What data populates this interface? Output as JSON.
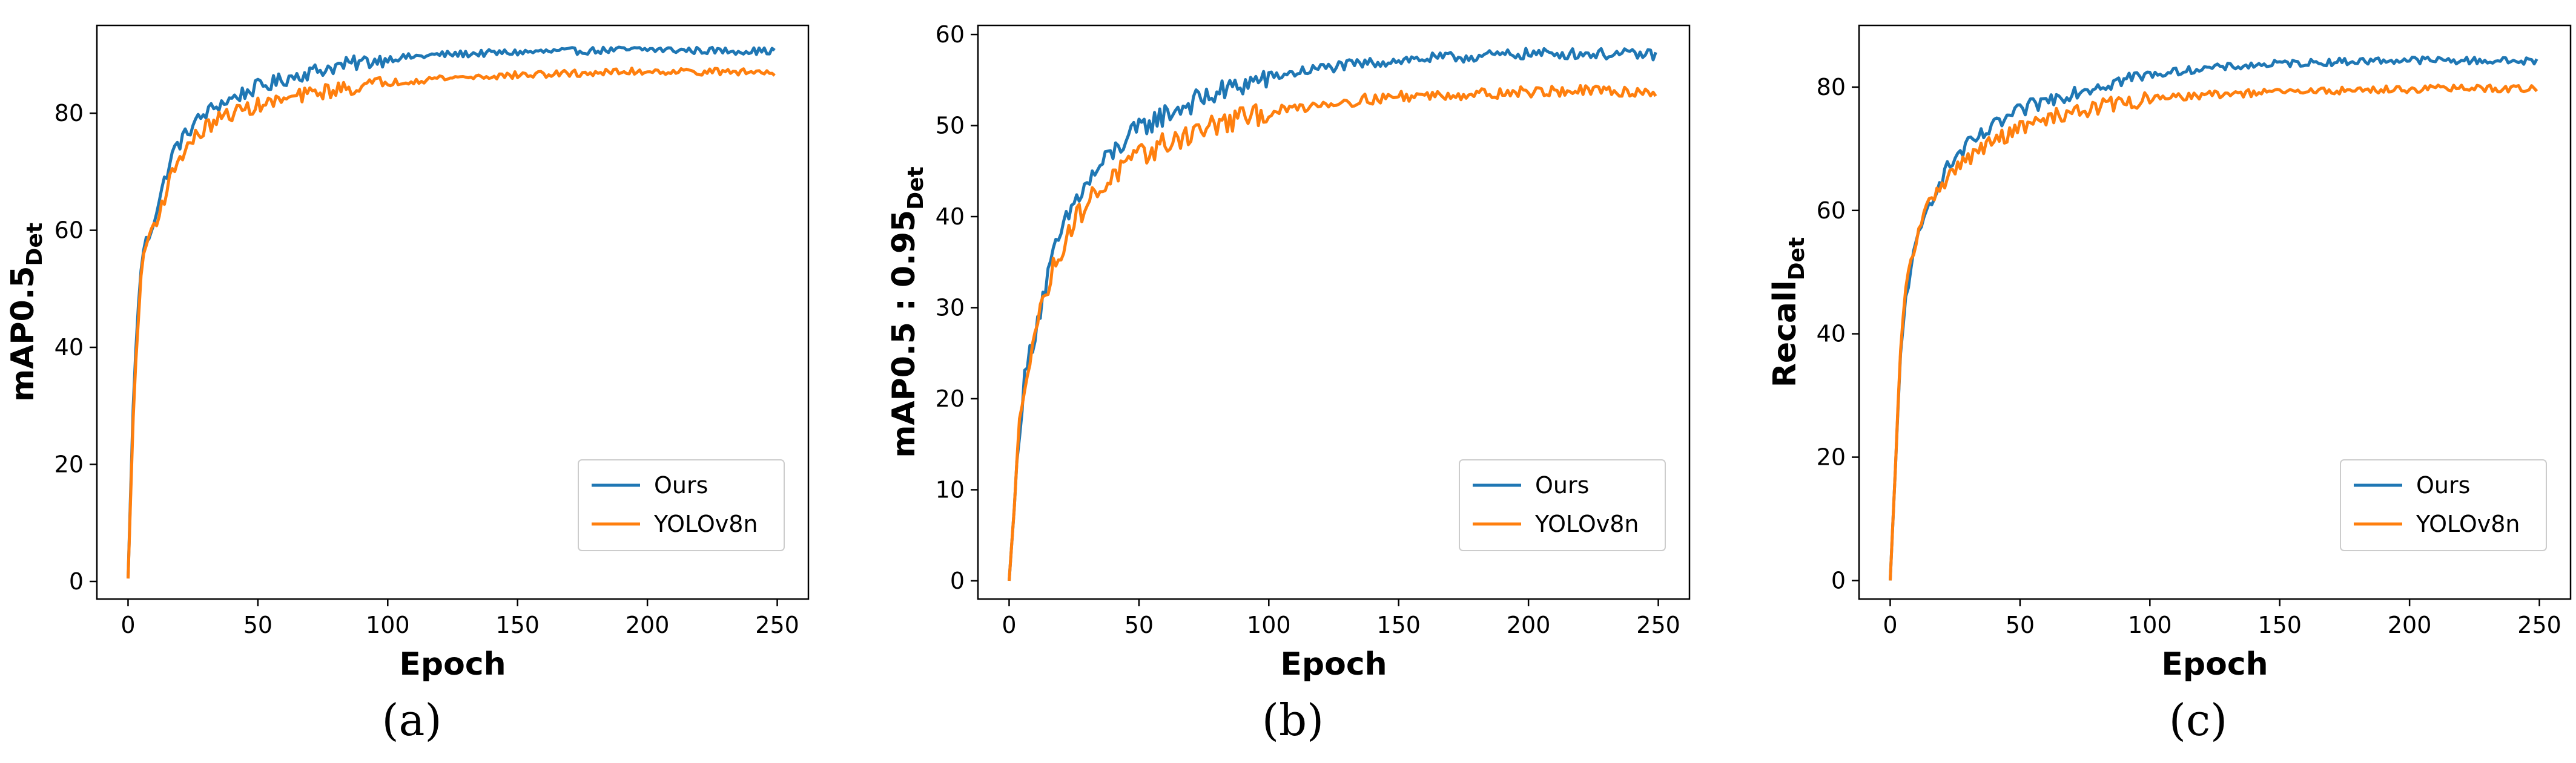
{
  "chart_data": [
    {
      "type": "line",
      "panel_label": "(a)",
      "xlabel": "Epoch",
      "ylabel_main": "mAP0.5",
      "ylabel_sub": "Det",
      "xlim": [
        -12,
        262
      ],
      "ylim": [
        -3,
        95
      ],
      "xticks": [
        0,
        50,
        100,
        150,
        200,
        250
      ],
      "yticks": [
        0,
        20,
        40,
        60,
        80
      ],
      "legend_position": "lower-right",
      "series": [
        {
          "name": "Ours",
          "color": "#1f77b4",
          "x": [
            0,
            2,
            4,
            6,
            8,
            10,
            12,
            15,
            18,
            20,
            25,
            30,
            35,
            40,
            45,
            50,
            55,
            60,
            65,
            70,
            75,
            80,
            90,
            100,
            120,
            150,
            180,
            200,
            220,
            249
          ],
          "y": [
            0.5,
            30,
            48,
            57,
            59,
            62,
            65,
            70,
            74,
            75,
            78,
            80,
            81.5,
            82.5,
            83.5,
            84.5,
            85,
            85.8,
            86.5,
            87,
            87.5,
            88,
            88.7,
            89.3,
            90,
            90.4,
            90.7,
            90.9,
            90.7,
            90.6
          ]
        },
        {
          "name": "YOLOv8n",
          "color": "#ff7f0e",
          "x": [
            0,
            2,
            4,
            6,
            8,
            10,
            12,
            15,
            18,
            20,
            25,
            30,
            35,
            40,
            45,
            50,
            55,
            60,
            65,
            70,
            75,
            80,
            90,
            100,
            120,
            150,
            180,
            200,
            220,
            249
          ],
          "y": [
            0.5,
            28,
            46,
            56,
            59,
            61,
            63,
            67,
            71,
            72.5,
            75.5,
            77.5,
            79,
            80,
            80.7,
            81.3,
            81.8,
            82.3,
            82.8,
            83.3,
            83.7,
            84,
            84.6,
            85.2,
            86,
            86.5,
            86.9,
            87.2,
            87.1,
            87
          ]
        }
      ]
    },
    {
      "type": "line",
      "panel_label": "(b)",
      "xlabel": "Epoch",
      "ylabel_main": "mAP0.5 : 0.95",
      "ylabel_sub": "Det",
      "xlim": [
        -12,
        262
      ],
      "ylim": [
        -2,
        61
      ],
      "xticks": [
        0,
        50,
        100,
        150,
        200,
        250
      ],
      "yticks": [
        0,
        10,
        20,
        30,
        40,
        50,
        60
      ],
      "legend_position": "lower-right",
      "series": [
        {
          "name": "Ours",
          "color": "#1f77b4",
          "x": [
            0,
            2,
            4,
            6,
            8,
            10,
            12,
            15,
            18,
            20,
            25,
            30,
            35,
            40,
            45,
            50,
            55,
            60,
            70,
            80,
            90,
            100,
            120,
            150,
            180,
            200,
            220,
            249
          ],
          "y": [
            0,
            8,
            17,
            22,
            25,
            27.5,
            30,
            33.5,
            36.5,
            38,
            41.5,
            43.5,
            45.5,
            47,
            48.5,
            49.5,
            50.5,
            51.2,
            52.5,
            53.5,
            54.5,
            55.3,
            56.3,
            57.2,
            57.6,
            57.9,
            57.9,
            57.8
          ]
        },
        {
          "name": "YOLOv8n",
          "color": "#ff7f0e",
          "x": [
            0,
            2,
            4,
            6,
            8,
            10,
            12,
            15,
            18,
            20,
            25,
            30,
            35,
            40,
            45,
            50,
            55,
            60,
            70,
            80,
            90,
            100,
            120,
            150,
            180,
            200,
            220,
            249
          ],
          "y": [
            0,
            8,
            17,
            22,
            25,
            27.5,
            29.5,
            32.5,
            35,
            36.5,
            39.5,
            41.5,
            43,
            44.5,
            45.5,
            46.5,
            47.3,
            48,
            49.2,
            50.1,
            50.8,
            51.4,
            52.4,
            53.2,
            53.5,
            53.7,
            53.8,
            53.7
          ]
        }
      ]
    },
    {
      "type": "line",
      "panel_label": "(c)",
      "xlabel": "Epoch",
      "ylabel_main": "Recall",
      "ylabel_sub": "Det",
      "xlim": [
        -12,
        262
      ],
      "ylim": [
        -3,
        90
      ],
      "xticks": [
        0,
        50,
        100,
        150,
        200,
        250
      ],
      "yticks": [
        0,
        20,
        40,
        60,
        80
      ],
      "legend_position": "lower-right",
      "series": [
        {
          "name": "Ours",
          "color": "#1f77b4",
          "x": [
            0,
            2,
            4,
            6,
            8,
            10,
            12,
            15,
            18,
            20,
            25,
            30,
            35,
            40,
            45,
            50,
            55,
            60,
            65,
            70,
            80,
            90,
            100,
            120,
            150,
            180,
            200,
            220,
            249
          ],
          "y": [
            0,
            18,
            36,
            46,
            51,
            54,
            57,
            61,
            64,
            65.5,
            68.5,
            70.5,
            72,
            73.5,
            75,
            76,
            77,
            77.8,
            78.5,
            79.2,
            80.3,
            81.2,
            82,
            83,
            83.8,
            84.2,
            84.4,
            84.3,
            84.2
          ]
        },
        {
          "name": "YOLOv8n",
          "color": "#ff7f0e",
          "x": [
            0,
            2,
            4,
            6,
            8,
            10,
            12,
            15,
            18,
            20,
            25,
            30,
            35,
            40,
            45,
            50,
            55,
            60,
            65,
            70,
            80,
            90,
            100,
            120,
            150,
            180,
            200,
            220,
            249
          ],
          "y": [
            0,
            18,
            37,
            47,
            52,
            55,
            58,
            61,
            63.5,
            64.5,
            66.5,
            68.5,
            70,
            71.2,
            72.3,
            73.3,
            74,
            74.8,
            75.4,
            76,
            76.8,
            77.5,
            78,
            78.7,
            79.2,
            79.5,
            79.7,
            79.8,
            79.7
          ]
        }
      ]
    }
  ]
}
